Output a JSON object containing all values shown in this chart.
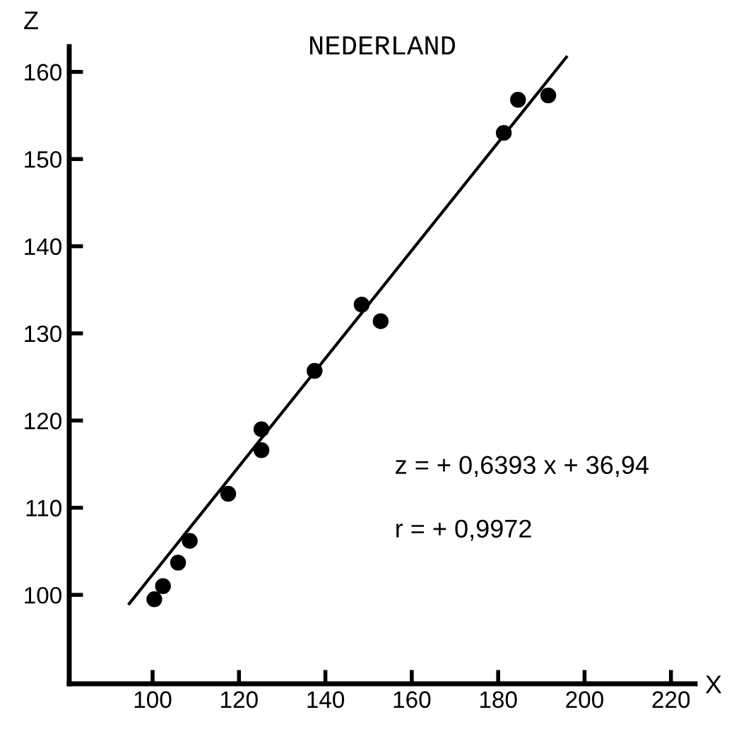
{
  "chart_data": {
    "type": "scatter",
    "title": "NEDERLAND",
    "xlabel": "X",
    "ylabel": "Z",
    "xlim": [
      80.7,
      225.6
    ],
    "ylim": [
      89.8,
      162.9
    ],
    "xticks": [
      100,
      120,
      140,
      160,
      180,
      200,
      220
    ],
    "yticks": [
      100,
      110,
      120,
      130,
      140,
      150,
      160
    ],
    "grid": false,
    "marker": "circle",
    "series": [
      {
        "color": "#000000",
        "x": [
          100.4,
          102.4,
          105.9,
          108.6,
          117.5,
          125.2,
          125.2,
          137.5,
          148.4,
          152.8,
          181.3,
          184.6,
          191.6
        ],
        "values": [
          99.5,
          101.0,
          103.7,
          106.2,
          111.6,
          116.6,
          119.0,
          125.7,
          133.3,
          131.4,
          153.0,
          156.8,
          157.3
        ]
      },
      {
        "type": "line",
        "color": "#000000",
        "marker": "none",
        "line_style": "solid",
        "x": [
          94.6,
          195.8
        ],
        "values": [
          99.0,
          161.7
        ]
      }
    ],
    "annotations": [
      "z = + 0,6393 x + 36,94",
      "r = + 0,9972"
    ]
  }
}
